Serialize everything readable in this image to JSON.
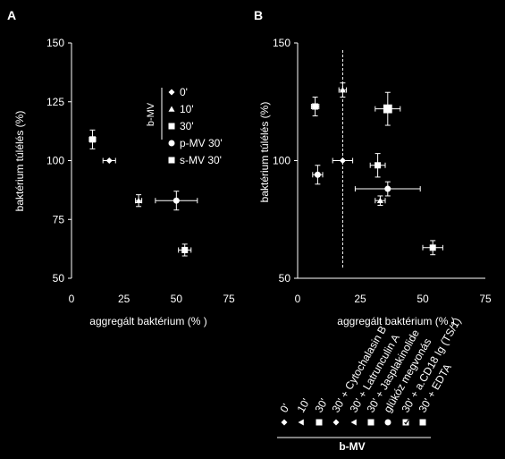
{
  "chart_data": [
    {
      "panel_label": "A",
      "type": "scatter",
      "xlabel": "aggregált baktérium (% )",
      "ylabel": "baktérium túlélés (%)",
      "xlim": [
        0,
        75
      ],
      "ylim": [
        50,
        150
      ],
      "xticks": [
        "0",
        "25",
        "50",
        "75"
      ],
      "yticks": [
        "50",
        "75",
        "100",
        "125",
        "150"
      ],
      "grid": false,
      "legend": {
        "group_label": "b-MV",
        "position": "top-right",
        "entries": [
          {
            "marker": "diamond",
            "label": "0'"
          },
          {
            "marker": "triangle",
            "label": "10'"
          },
          {
            "marker": "square",
            "label": "30'"
          },
          {
            "marker": "circle",
            "label": "p-MV 30'"
          },
          {
            "marker": "square",
            "label": "s-MV 30'"
          }
        ]
      },
      "points": [
        {
          "label": "0'",
          "marker": "diamond",
          "x": 18,
          "y": 100,
          "xerr": 3,
          "yerr": 0
        },
        {
          "label": "10'",
          "marker": "triangle",
          "x": 32,
          "y": 83,
          "xerr": 1.5,
          "yerr": 2.5
        },
        {
          "label": "30'",
          "marker": "square",
          "x": 10,
          "y": 109,
          "xerr": 1.5,
          "yerr": 4
        },
        {
          "label": "p-MV 30'",
          "marker": "circle",
          "x": 50,
          "y": 83,
          "xerr": 10,
          "yerr": 4
        },
        {
          "label": "s-MV 30'",
          "marker": "square",
          "x": 54,
          "y": 62,
          "xerr": 3,
          "yerr": 2.5
        }
      ]
    },
    {
      "panel_label": "B",
      "type": "scatter",
      "xlabel": "aggregált baktérium (% )",
      "ylabel": "baktérium túlélés (%)",
      "xlim": [
        0,
        75
      ],
      "ylim": [
        50,
        150
      ],
      "xticks": [
        "0",
        "25",
        "50",
        "75"
      ],
      "yticks": [
        "50",
        "100",
        "150"
      ],
      "grid": false,
      "reference_line_x": 18,
      "points": [
        {
          "label": "0'",
          "marker": "diamond",
          "x": 18,
          "y": 100,
          "xerr": 4,
          "yerr": 0
        },
        {
          "label": "10'",
          "marker": "triangle",
          "x": 18,
          "y": 130,
          "xerr": 1.5,
          "yerr": 3
        },
        {
          "label": "30' + Latrunculin A",
          "marker": "square",
          "x": 7,
          "y": 123,
          "xerr": 1.5,
          "yerr": 4
        },
        {
          "label": "30' + EDTA",
          "marker": "square-large",
          "x": 36,
          "y": 122,
          "xerr": 5,
          "yerr": 7
        },
        {
          "label": "30' + Cytochalasin B",
          "marker": "circle",
          "x": 8,
          "y": 94,
          "xerr": 2,
          "yerr": 4
        },
        {
          "label": "30' + Jasplakinolide",
          "marker": "square",
          "x": 32,
          "y": 98,
          "xerr": 3,
          "yerr": 5
        },
        {
          "label": "30' + a.CD18 Ig (TS/1)",
          "marker": "circle",
          "x": 36,
          "y": 88,
          "xerr": 13,
          "yerr": 3
        },
        {
          "label": "30' + glükóz megvonás",
          "marker": "triangle",
          "x": 33,
          "y": 83,
          "xerr": 2,
          "yerr": 2
        },
        {
          "label": "30'",
          "marker": "square",
          "x": 54,
          "y": 63,
          "xerr": 4,
          "yerr": 3
        }
      ],
      "legend": {
        "group_label": "b-MV",
        "position": "bottom-right",
        "entries": [
          {
            "marker": "diamond",
            "label": "0'"
          },
          {
            "marker": "triangle-left",
            "label": "10'"
          },
          {
            "marker": "square",
            "label": "30'"
          },
          {
            "marker": "diamond",
            "label": "30' + Cytochalasin B"
          },
          {
            "marker": "triangle-left",
            "label": "30' + Latrunculin A"
          },
          {
            "marker": "square",
            "label": "30' + Jasplakinolide"
          },
          {
            "marker": "circle",
            "label": "glükóz megvonás"
          },
          {
            "marker": "square-check",
            "label": "30' + a.CD18 Ig (TS/1)"
          },
          {
            "marker": "square",
            "label": "30' + EDTA"
          }
        ]
      }
    }
  ]
}
